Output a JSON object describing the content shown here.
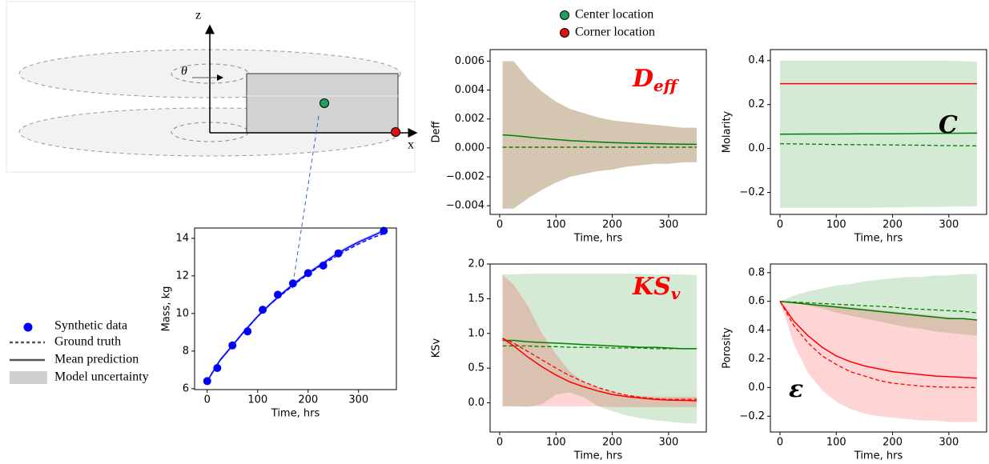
{
  "diagram": {
    "z_label": "z",
    "x_label": "x",
    "angle_label": "θ"
  },
  "legend": [
    {
      "name": "Center location",
      "color": "#1fa060"
    },
    {
      "name": "Corner location",
      "color": "#e01010"
    }
  ],
  "chart_data": [
    {
      "type": "scatter",
      "xlabel": "Time, hrs",
      "ylabel": "Mass, kg",
      "color": "blue",
      "xlim": [
        -25,
        375
      ],
      "xticks": [
        0,
        100,
        200,
        300
      ],
      "ylim": [
        5.95,
        14.55
      ],
      "yticks": [
        6,
        8,
        10,
        12,
        14
      ],
      "points": {
        "name": "Synthetic data",
        "x": [
          0,
          20,
          50,
          80,
          110,
          140,
          170,
          200,
          230,
          260,
          350
        ],
        "values": [
          6.4,
          7.1,
          8.3,
          9.05,
          10.2,
          11.0,
          11.6,
          12.15,
          12.55,
          13.2,
          14.4
        ]
      },
      "curve_x": [
        0,
        25,
        50,
        75,
        100,
        125,
        150,
        175,
        200,
        225,
        250,
        275,
        300,
        325,
        350
      ],
      "truth": {
        "name": "Ground truth",
        "values": [
          6.4,
          7.5,
          8.3,
          9.1,
          9.85,
          10.5,
          11.05,
          11.6,
          12.1,
          12.55,
          12.95,
          13.35,
          13.7,
          14.0,
          14.25
        ]
      },
      "mean": {
        "name": "Mean prediction",
        "values": [
          6.4,
          7.5,
          8.3,
          9.1,
          9.85,
          10.5,
          11.1,
          11.65,
          12.15,
          12.6,
          13.05,
          13.45,
          13.8,
          14.1,
          14.4
        ]
      },
      "band": {
        "name": "Model uncertainty",
        "lower": [
          6.3,
          7.4,
          8.2,
          9.0,
          9.75,
          10.4,
          11.0,
          11.55,
          12.05,
          12.5,
          12.95,
          13.35,
          13.7,
          14.0,
          14.3
        ],
        "upper": [
          6.5,
          7.6,
          8.4,
          9.2,
          9.95,
          10.6,
          11.2,
          11.75,
          12.25,
          12.7,
          13.15,
          13.55,
          13.9,
          14.2,
          14.5
        ]
      }
    },
    {
      "type": "line",
      "xlabel": "Time, hrs",
      "ylabel": "Deff",
      "annotation": {
        "text": "D",
        "subscript": "eff",
        "color": "#ff0000"
      },
      "xlim": [
        -17,
        367
      ],
      "xticks": [
        0,
        100,
        200,
        300
      ],
      "ylim": [
        -0.0046,
        0.0068
      ],
      "yticks": [
        {
          "value": -0.004,
          "label": "−0.004"
        },
        {
          "value": -0.002,
          "label": "−0.002"
        },
        {
          "value": 0,
          "label": "0.000"
        },
        {
          "value": 0.002,
          "label": "0.002"
        },
        {
          "value": 0.004,
          "label": "0.004"
        },
        {
          "value": 0.006,
          "label": "0.006"
        }
      ],
      "x": [
        5,
        25,
        50,
        75,
        100,
        125,
        150,
        175,
        200,
        225,
        250,
        275,
        300,
        325,
        350
      ],
      "series": [
        {
          "color": "#ff0000",
          "truth": [
            5e-05,
            5e-05,
            5e-05,
            5e-05,
            5e-05,
            5e-05,
            5e-05,
            5e-05,
            5e-05,
            5e-05,
            5e-05,
            5e-05,
            5e-05,
            5e-05,
            5e-05
          ],
          "lower": [
            -0.0042,
            -0.0042,
            -0.0035,
            -0.0029,
            -0.0024,
            -0.002,
            -0.0018,
            -0.0016,
            -0.0015,
            -0.0013,
            -0.0012,
            -0.0011,
            -0.0011,
            -0.001,
            -0.001
          ],
          "upper": [
            0.006,
            0.006,
            0.0048,
            0.0039,
            0.0032,
            0.0027,
            0.0024,
            0.0021,
            0.0019,
            0.0018,
            0.0017,
            0.0016,
            0.0015,
            0.0014,
            0.0014
          ]
        },
        {
          "color": "#008000",
          "mean": [
            0.0009,
            0.00085,
            0.00075,
            0.00066,
            0.00058,
            0.00051,
            0.00046,
            0.00041,
            0.00037,
            0.00034,
            0.00031,
            0.00029,
            0.00027,
            0.00026,
            0.00025
          ],
          "truth": [
            5e-05,
            5e-05,
            5e-05,
            5e-05,
            5e-05,
            5e-05,
            5e-05,
            5e-05,
            5e-05,
            5e-05,
            5e-05,
            5e-05,
            5e-05,
            5e-05,
            5e-05
          ],
          "lower": [
            -0.0042,
            -0.0042,
            -0.0035,
            -0.0029,
            -0.0024,
            -0.002,
            -0.0018,
            -0.0016,
            -0.0015,
            -0.0013,
            -0.0012,
            -0.0011,
            -0.0011,
            -0.001,
            -0.001
          ],
          "upper": [
            0.006,
            0.006,
            0.0048,
            0.0039,
            0.0032,
            0.0027,
            0.0024,
            0.0021,
            0.0019,
            0.0018,
            0.0017,
            0.0016,
            0.0015,
            0.0014,
            0.0014
          ]
        }
      ]
    },
    {
      "type": "line",
      "xlabel": "Time, hrs",
      "ylabel": "Molarity",
      "annotation": {
        "text": "C",
        "color": "#000000"
      },
      "xlim": [
        -17,
        367
      ],
      "xticks": [
        0,
        100,
        200,
        300
      ],
      "ylim": [
        -0.3,
        0.45
      ],
      "yticks": [
        {
          "value": -0.2,
          "label": "−0.2"
        },
        {
          "value": 0,
          "label": "0.0"
        },
        0.2,
        0.4
      ],
      "x": [
        0,
        50,
        100,
        150,
        200,
        250,
        300,
        350
      ],
      "series": [
        {
          "color": "#008000",
          "mean": [
            0.065,
            0.066,
            0.066,
            0.067,
            0.067,
            0.068,
            0.069,
            0.07
          ],
          "truth": [
            0.022,
            0.02,
            0.018,
            0.017,
            0.016,
            0.015,
            0.013,
            0.012
          ],
          "lower": [
            -0.27,
            -0.27,
            -0.27,
            -0.27,
            -0.268,
            -0.266,
            -0.265,
            -0.263
          ],
          "upper": [
            0.4,
            0.4,
            0.4,
            0.4,
            0.4,
            0.4,
            0.4,
            0.395
          ]
        },
        {
          "color": "#ff0000",
          "mean": [
            0.295,
            0.295,
            0.295,
            0.295,
            0.295,
            0.295,
            0.295,
            0.295
          ]
        }
      ]
    },
    {
      "type": "line",
      "xlabel": "Time, hrs",
      "ylabel": "KSv",
      "annotation": {
        "text": "KS",
        "subscript": "v",
        "color": "#ff0000"
      },
      "xlim": [
        -17,
        367
      ],
      "xticks": [
        0,
        100,
        200,
        300
      ],
      "ylim": [
        -0.42,
        2.0
      ],
      "yticks": [
        {
          "value": 0,
          "label": "0.0"
        },
        0.5,
        {
          "value": 1,
          "label": "1.0"
        },
        1.5,
        {
          "value": 2,
          "label": "2.0"
        }
      ],
      "x": [
        5,
        25,
        50,
        75,
        100,
        125,
        150,
        175,
        200,
        225,
        250,
        275,
        300,
        325,
        350
      ],
      "series": [
        {
          "color": "#008000",
          "mean": [
            0.9,
            0.9,
            0.88,
            0.87,
            0.86,
            0.85,
            0.84,
            0.83,
            0.82,
            0.81,
            0.8,
            0.8,
            0.79,
            0.78,
            0.78
          ],
          "truth": [
            0.82,
            0.82,
            0.82,
            0.81,
            0.81,
            0.8,
            0.8,
            0.8,
            0.79,
            0.79,
            0.79,
            0.78,
            0.78,
            0.78,
            0.78
          ],
          "lower": [
            -0.05,
            -0.05,
            -0.06,
            -0.02,
            0.12,
            0.15,
            0.08,
            -0.05,
            -0.12,
            -0.18,
            -0.22,
            -0.25,
            -0.27,
            -0.29,
            -0.3
          ],
          "upper": [
            1.85,
            1.85,
            1.86,
            1.86,
            1.86,
            1.86,
            1.86,
            1.86,
            1.86,
            1.86,
            1.86,
            1.85,
            1.85,
            1.85,
            1.84
          ]
        },
        {
          "color": "#ff0000",
          "mean": [
            0.93,
            0.82,
            0.66,
            0.52,
            0.4,
            0.3,
            0.23,
            0.17,
            0.12,
            0.09,
            0.07,
            0.05,
            0.04,
            0.035,
            0.03
          ],
          "truth": [
            0.93,
            0.86,
            0.74,
            0.62,
            0.5,
            0.39,
            0.3,
            0.22,
            0.16,
            0.11,
            0.08,
            0.06,
            0.05,
            0.05,
            0.05
          ],
          "lower": [
            -0.05,
            -0.05,
            -0.05,
            -0.05,
            -0.05,
            -0.05,
            -0.05,
            -0.05,
            -0.06,
            -0.06,
            -0.06,
            -0.06,
            -0.06,
            -0.06,
            -0.06
          ],
          "upper": [
            1.85,
            1.7,
            1.4,
            1.0,
            0.7,
            0.45,
            0.3,
            0.22,
            0.15,
            0.12,
            0.1,
            0.09,
            0.09,
            0.09,
            0.09
          ]
        }
      ]
    },
    {
      "type": "line",
      "xlabel": "Time, hrs",
      "ylabel": "Porosity",
      "annotation": {
        "text": "ε",
        "color": "#000000"
      },
      "xlim": [
        -17,
        367
      ],
      "xticks": [
        0,
        100,
        200,
        300
      ],
      "ylim": [
        -0.31,
        0.86
      ],
      "yticks": [
        {
          "value": -0.2,
          "label": "−0.2"
        },
        {
          "value": 0,
          "label": "0.0"
        },
        0.2,
        0.4,
        0.6,
        0.8
      ],
      "x": [
        0,
        25,
        50,
        75,
        100,
        125,
        150,
        175,
        200,
        225,
        250,
        275,
        300,
        325,
        350
      ],
      "series": [
        {
          "color": "#008000",
          "mean": [
            0.6,
            0.59,
            0.58,
            0.57,
            0.56,
            0.55,
            0.54,
            0.53,
            0.52,
            0.51,
            0.5,
            0.49,
            0.48,
            0.48,
            0.47
          ],
          "truth": [
            0.6,
            0.595,
            0.59,
            0.585,
            0.58,
            0.575,
            0.57,
            0.565,
            0.56,
            0.55,
            0.545,
            0.54,
            0.535,
            0.53,
            0.52
          ],
          "lower": [
            0.6,
            0.59,
            0.57,
            0.55,
            0.52,
            0.5,
            0.48,
            0.46,
            0.44,
            0.42,
            0.41,
            0.39,
            0.38,
            0.37,
            0.36
          ],
          "upper": [
            0.6,
            0.64,
            0.67,
            0.69,
            0.71,
            0.72,
            0.74,
            0.75,
            0.76,
            0.77,
            0.77,
            0.78,
            0.78,
            0.79,
            0.79
          ]
        },
        {
          "color": "#ff0000",
          "mean": [
            0.6,
            0.46,
            0.36,
            0.28,
            0.22,
            0.18,
            0.15,
            0.13,
            0.11,
            0.1,
            0.09,
            0.08,
            0.075,
            0.07,
            0.065
          ],
          "truth": [
            0.6,
            0.43,
            0.31,
            0.22,
            0.16,
            0.11,
            0.08,
            0.05,
            0.03,
            0.02,
            0.01,
            0.005,
            0.002,
            0.001,
            0
          ],
          "lower": [
            0.6,
            0.3,
            0.1,
            -0.02,
            -0.1,
            -0.15,
            -0.18,
            -0.2,
            -0.21,
            -0.22,
            -0.23,
            -0.23,
            -0.24,
            -0.24,
            -0.24
          ],
          "upper": [
            0.6,
            0.6,
            0.59,
            0.58,
            0.57,
            0.56,
            0.55,
            0.54,
            0.53,
            0.52,
            0.51,
            0.5,
            0.49,
            0.48,
            0.47
          ]
        }
      ]
    }
  ]
}
